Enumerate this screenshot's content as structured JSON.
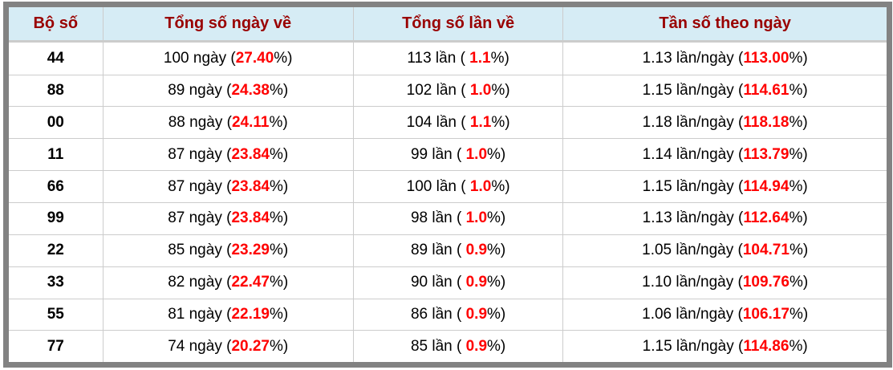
{
  "colors": {
    "frame": "#828282",
    "header_bg": "#d6ecf5",
    "header_text": "#990000",
    "highlight": "#ff0000",
    "border": "#cccccc"
  },
  "table": {
    "columns": [
      {
        "label": "Bộ số"
      },
      {
        "label": "Tổng số ngày về"
      },
      {
        "label": "Tổng số lần về"
      },
      {
        "label": "Tần số theo ngày"
      }
    ],
    "rows": [
      {
        "pair": "44",
        "days": {
          "pre": "100 ngày (",
          "hl": "27.40",
          "post": "%)"
        },
        "times": {
          "pre": "113 lần ( ",
          "hl": "1.1",
          "post": "%)"
        },
        "freq": {
          "pre": "1.13 lần/ngày (",
          "hl": "113.00",
          "post": "%)"
        }
      },
      {
        "pair": "88",
        "days": {
          "pre": "89 ngày (",
          "hl": "24.38",
          "post": "%)"
        },
        "times": {
          "pre": "102 lần ( ",
          "hl": "1.0",
          "post": "%)"
        },
        "freq": {
          "pre": "1.15 lần/ngày (",
          "hl": "114.61",
          "post": "%)"
        }
      },
      {
        "pair": "00",
        "days": {
          "pre": "88 ngày (",
          "hl": "24.11",
          "post": "%)"
        },
        "times": {
          "pre": "104 lần ( ",
          "hl": "1.1",
          "post": "%)"
        },
        "freq": {
          "pre": "1.18 lần/ngày (",
          "hl": "118.18",
          "post": "%)"
        }
      },
      {
        "pair": "11",
        "days": {
          "pre": "87 ngày (",
          "hl": "23.84",
          "post": "%)"
        },
        "times": {
          "pre": "99 lần ( ",
          "hl": "1.0",
          "post": "%)"
        },
        "freq": {
          "pre": "1.14 lần/ngày (",
          "hl": "113.79",
          "post": "%)"
        }
      },
      {
        "pair": "66",
        "days": {
          "pre": "87 ngày (",
          "hl": "23.84",
          "post": "%)"
        },
        "times": {
          "pre": "100 lần ( ",
          "hl": "1.0",
          "post": "%)"
        },
        "freq": {
          "pre": "1.15 lần/ngày (",
          "hl": "114.94",
          "post": "%)"
        }
      },
      {
        "pair": "99",
        "days": {
          "pre": "87 ngày (",
          "hl": "23.84",
          "post": "%)"
        },
        "times": {
          "pre": "98 lần ( ",
          "hl": "1.0",
          "post": "%)"
        },
        "freq": {
          "pre": "1.13 lần/ngày (",
          "hl": "112.64",
          "post": "%)"
        }
      },
      {
        "pair": "22",
        "days": {
          "pre": "85 ngày (",
          "hl": "23.29",
          "post": "%)"
        },
        "times": {
          "pre": "89 lần ( ",
          "hl": "0.9",
          "post": "%)"
        },
        "freq": {
          "pre": "1.05 lần/ngày (",
          "hl": "104.71",
          "post": "%)"
        }
      },
      {
        "pair": "33",
        "days": {
          "pre": "82 ngày (",
          "hl": "22.47",
          "post": "%)"
        },
        "times": {
          "pre": "90 lần ( ",
          "hl": "0.9",
          "post": "%)"
        },
        "freq": {
          "pre": "1.10 lần/ngày (",
          "hl": "109.76",
          "post": "%)"
        }
      },
      {
        "pair": "55",
        "days": {
          "pre": "81 ngày (",
          "hl": "22.19",
          "post": "%)"
        },
        "times": {
          "pre": "86 lần ( ",
          "hl": "0.9",
          "post": "%)"
        },
        "freq": {
          "pre": "1.06 lần/ngày (",
          "hl": "106.17",
          "post": "%)"
        }
      },
      {
        "pair": "77",
        "days": {
          "pre": "74 ngày (",
          "hl": "20.27",
          "post": "%)"
        },
        "times": {
          "pre": "85 lần ( ",
          "hl": "0.9",
          "post": "%)"
        },
        "freq": {
          "pre": "1.15 lần/ngày (",
          "hl": "114.86",
          "post": "%)"
        }
      }
    ]
  }
}
